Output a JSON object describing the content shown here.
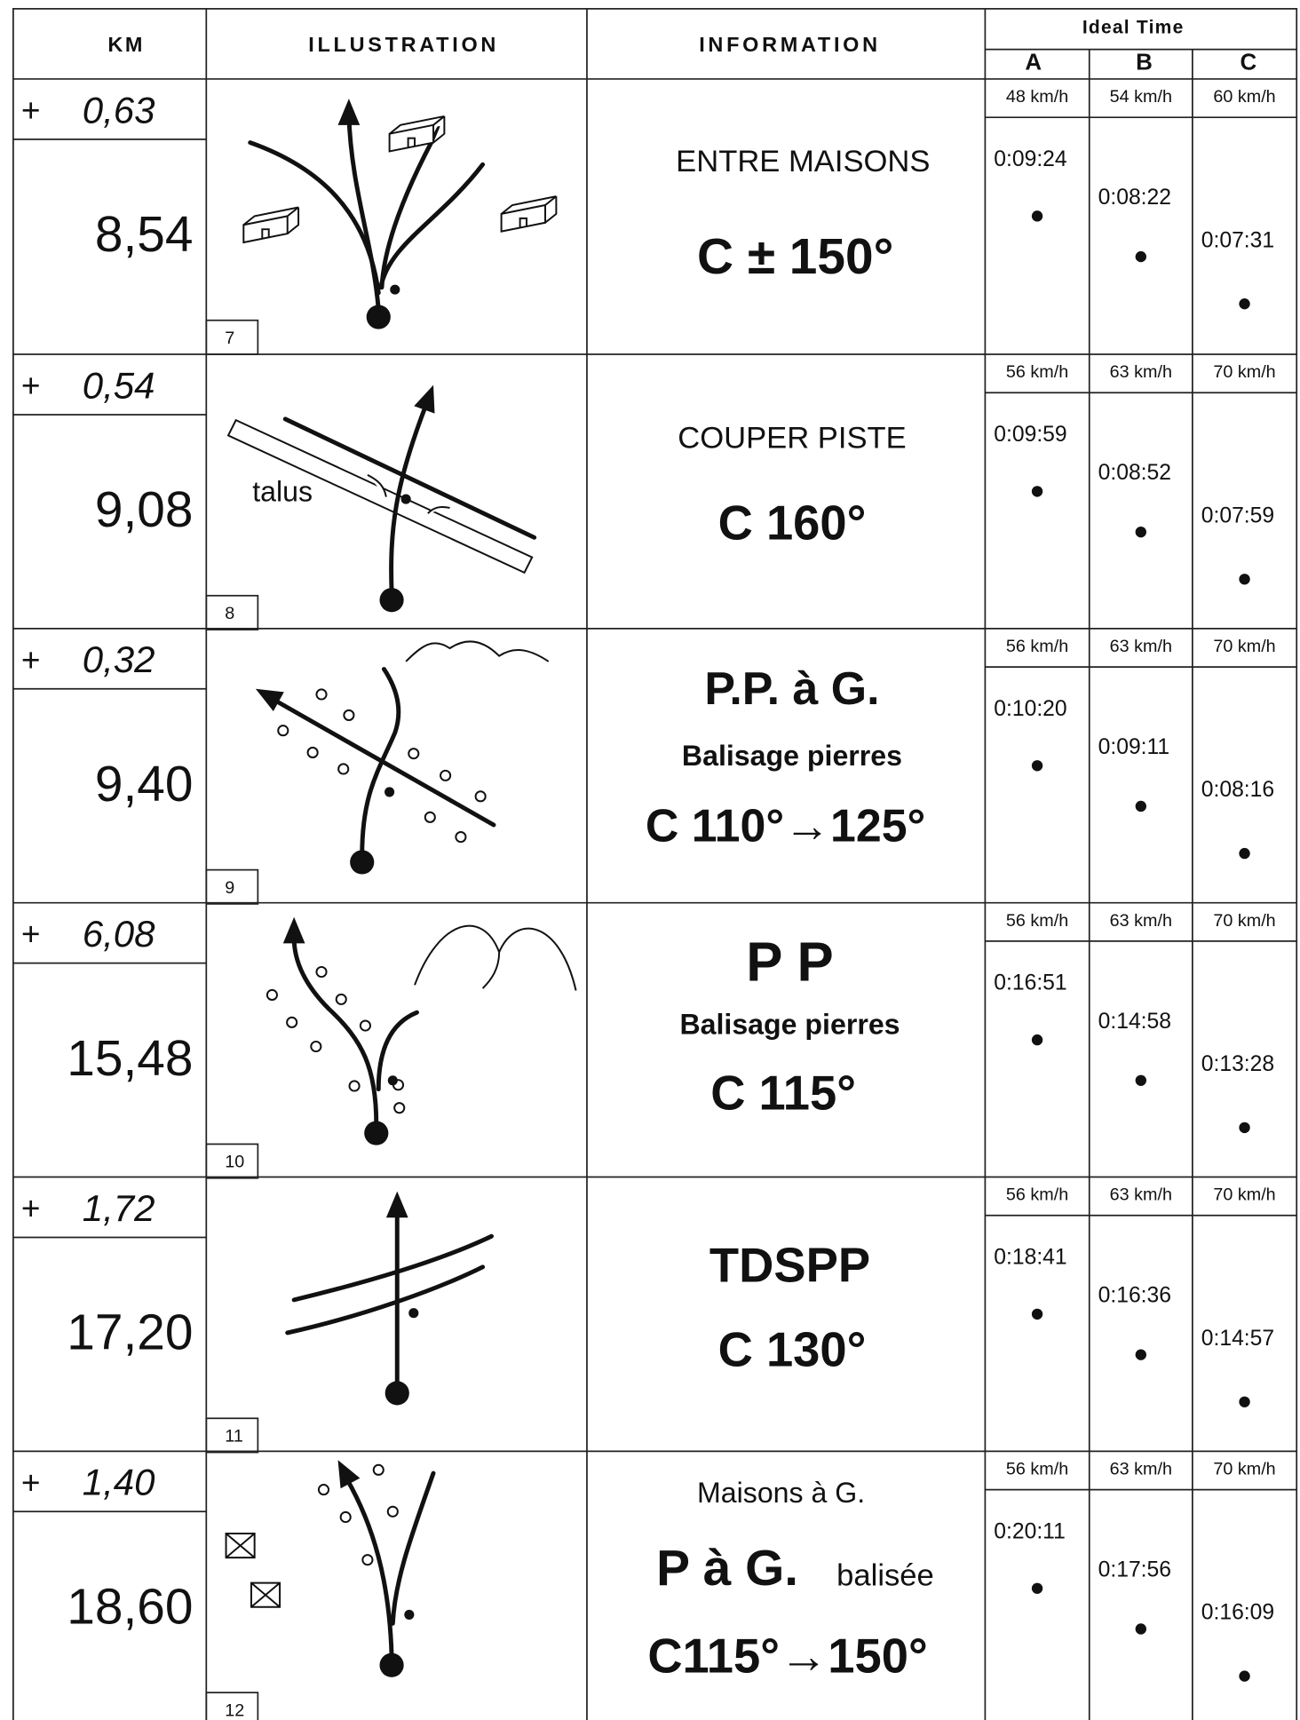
{
  "header": {
    "km": "KM",
    "illustration": "ILLUSTRATION",
    "information": "INFORMATION",
    "ideal_time": "Ideal Time",
    "columns": [
      "A",
      "B",
      "C"
    ]
  },
  "rows": [
    {
      "plus": "+",
      "partial": "0,63",
      "total": "8,54",
      "number": "7",
      "info": [
        "ENTRE MAISONS",
        "C ± 150°"
      ],
      "speeds": [
        "48 km/h",
        "54 km/h",
        "60 km/h"
      ],
      "times": [
        "0:09:24",
        "0:08:22",
        "0:07:31"
      ]
    },
    {
      "plus": "+",
      "partial": "0,54",
      "total": "9,08",
      "number": "8",
      "label": "talus",
      "info": [
        "COUPER PISTE",
        "C 160°"
      ],
      "speeds": [
        "56 km/h",
        "63 km/h",
        "70 km/h"
      ],
      "times": [
        "0:09:59",
        "0:08:52",
        "0:07:59"
      ]
    },
    {
      "plus": "+",
      "partial": "0,32",
      "total": "9,40",
      "number": "9",
      "info": [
        "P.P. à G.",
        "Balisage pierres",
        "C 110°→125°"
      ],
      "speeds": [
        "56 km/h",
        "63 km/h",
        "70 km/h"
      ],
      "times": [
        "0:10:20",
        "0:09:11",
        "0:08:16"
      ]
    },
    {
      "plus": "+",
      "partial": "6,08",
      "total": "15,48",
      "number": "10",
      "info": [
        "P P",
        "Balisage pierres",
        "C 115°"
      ],
      "speeds": [
        "56 km/h",
        "63 km/h",
        "70 km/h"
      ],
      "times": [
        "0:16:51",
        "0:14:58",
        "0:13:28"
      ]
    },
    {
      "plus": "+",
      "partial": "1,72",
      "total": "17,20",
      "number": "11",
      "info": [
        "TDSPP",
        "C 130°"
      ],
      "speeds": [
        "56 km/h",
        "63 km/h",
        "70 km/h"
      ],
      "times": [
        "0:18:41",
        "0:16:36",
        "0:14:57"
      ]
    },
    {
      "plus": "+",
      "partial": "1,40",
      "total": "18,60",
      "number": "12",
      "info": [
        "Maisons à G.",
        "P à G.",
        "balisée",
        "C115°→150°"
      ],
      "speeds": [
        "56 km/h",
        "63 km/h",
        "70 km/h"
      ],
      "times": [
        "0:20:11",
        "0:17:56",
        "0:16:09"
      ]
    }
  ]
}
